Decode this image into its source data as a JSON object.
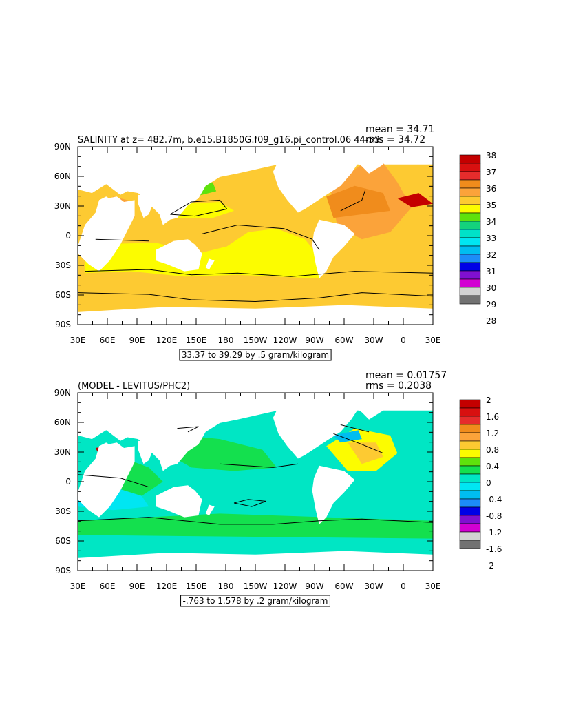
{
  "chart_data": [
    {
      "type": "heatmap",
      "title": "SALINITY at z= 482.7m, b.e15.B1850G.f09_g16.pi_control.06 44-53",
      "title_overlap": "rms = 34.72",
      "mean_text": "mean = 34.71",
      "rms_text": "",
      "range_text": "33.37 to 39.29 by .5 gram/kilogram",
      "xtick_labels": [
        "30E",
        "60E",
        "90E",
        "120E",
        "150E",
        "180",
        "150W",
        "120W",
        "90W",
        "60W",
        "30W",
        "0",
        "30E"
      ],
      "ytick_labels": [
        "90N",
        "60N",
        "30N",
        "0",
        "30S",
        "60S",
        "90S"
      ],
      "colorbar": {
        "labels": [
          "38",
          "37",
          "36",
          "35",
          "34",
          "33",
          "32",
          "31",
          "30",
          "29",
          "28"
        ],
        "colors": [
          "#c40000",
          "#d81010",
          "#e62c2c",
          "#f08c1c",
          "#fba33a",
          "#fdca32",
          "#fcfc00",
          "#5ee20c",
          "#14d27c",
          "#00e2c8",
          "#00e6f2",
          "#00bdf0",
          "#1c8cf8",
          "#0000e6",
          "#8010d0",
          "#d200d2",
          "#d2d2d2",
          "#727272"
        ]
      },
      "region_colors": {
        "ocean_high": "#fdca32",
        "ocean_mid": "#fcfc00",
        "arabian": "#fba33a",
        "atlantic_mid": "#fba33a",
        "atlantic_high": "#f08c1c",
        "med": "#c40000",
        "fresh": "#5ee20c"
      }
    },
    {
      "type": "heatmap",
      "title": "(MODEL - LEVITUS/PHC2)",
      "mean_text": "mean = 0.01757",
      "rms_text": "rms = 0.2038",
      "range_text": "-.763 to 1.578 by .2 gram/kilogram",
      "xtick_labels": [
        "30E",
        "60E",
        "90E",
        "120E",
        "150E",
        "180",
        "150W",
        "120W",
        "90W",
        "60W",
        "30W",
        "0",
        "30E"
      ],
      "ytick_labels": [
        "90N",
        "60N",
        "30N",
        "0",
        "30S",
        "60S",
        "90S"
      ],
      "colorbar": {
        "labels": [
          "2",
          "1.6",
          "1.2",
          "0.8",
          "0.4",
          "0",
          "-0.4",
          "-0.8",
          "-1.2",
          "-1.6",
          "-2"
        ],
        "colors": [
          "#c40000",
          "#d81010",
          "#e62c2c",
          "#f08c1c",
          "#fba33a",
          "#fdca32",
          "#fcfc00",
          "#5ee20c",
          "#14e04e",
          "#00e6c4",
          "#00e6f2",
          "#00bdf0",
          "#1c8cf8",
          "#0000e6",
          "#8010d0",
          "#d200d2",
          "#d2d2d2",
          "#727272"
        ]
      },
      "region_colors": {
        "ocean": "#00e6c4",
        "positive": "#14e04e",
        "indian_negative": "#00e6f2",
        "atlantic_mid": "#fcfc00",
        "atlantic_high": "#fdca32",
        "med": "#c40000",
        "fresh": "#00bdf0"
      }
    }
  ]
}
